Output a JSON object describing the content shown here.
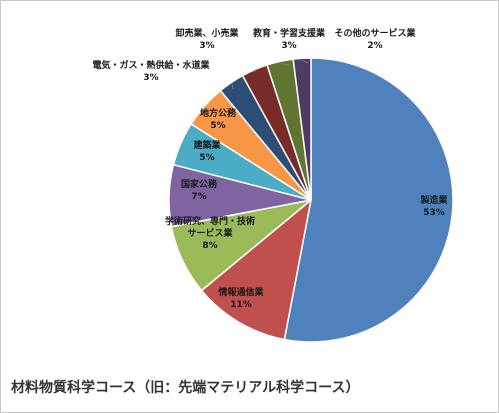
{
  "chart_data": {
    "type": "pie",
    "categories": [
      "製造業",
      "情報通信業",
      "学術研究、専門・技術サービス業",
      "国家公務",
      "建築業",
      "地方公務",
      "電気・ガス・熱供給・水道業",
      "卸売業、小売業",
      "教育・学習支援業",
      "その他のサービス業"
    ],
    "values": [
      53,
      11,
      8,
      7,
      5,
      5,
      3,
      3,
      3,
      2
    ],
    "value_labels": [
      "53%",
      "11%",
      "8%",
      "7%",
      "5%",
      "5%",
      "3%",
      "3%",
      "3%",
      "2%"
    ],
    "label_lines": [
      [
        "製造業"
      ],
      [
        "情報通信業"
      ],
      [
        "学術研究、専門・技術",
        "サービス業"
      ],
      [
        "国家公務"
      ],
      [
        "建築業"
      ],
      [
        "地方公務"
      ],
      [
        "電気・ガス・熱供給・水道業"
      ],
      [
        "卸売業、小売業"
      ],
      [
        "教育・学習支援業"
      ],
      [
        "その他のサービス業"
      ]
    ],
    "colors": [
      "#4F81BD",
      "#C0504D",
      "#9BBB59",
      "#8064A2",
      "#4BACC6",
      "#F79646",
      "#2C4D75",
      "#772C2A",
      "#5F7530",
      "#4D3B62"
    ],
    "start": "12 o'clock",
    "direction": "clockwise"
  },
  "caption": "材料物質科学コース（旧：先端マテリアル科学コース）"
}
